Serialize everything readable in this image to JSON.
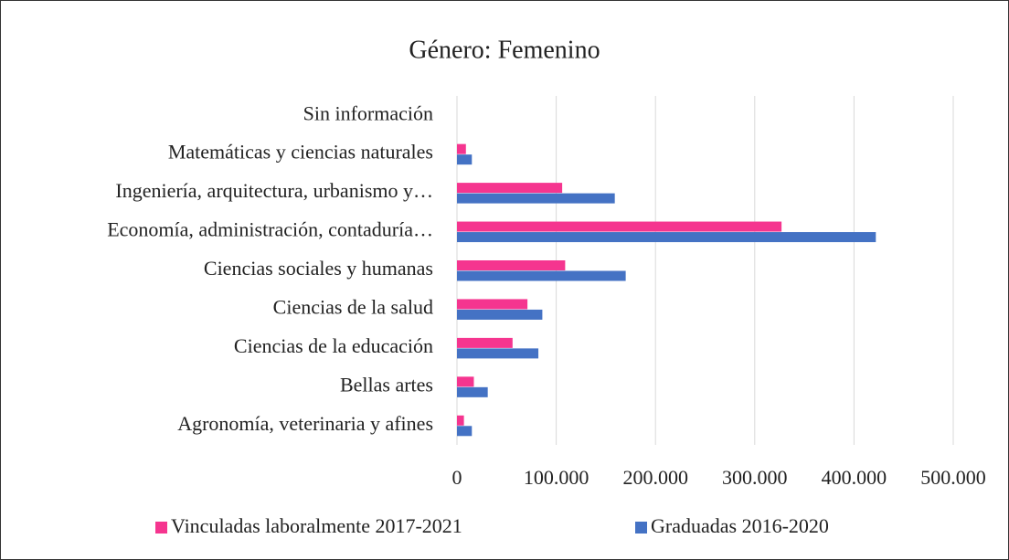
{
  "chart_data": {
    "type": "bar",
    "orientation": "horizontal",
    "title": "Género: Femenino",
    "categories": [
      "Agronomía, veterinaria y afines",
      "Bellas artes",
      "Ciencias de la educación",
      "Ciencias de la salud",
      "Ciencias sociales y humanas",
      "Economía, administración, contaduría…",
      "Ingeniería, arquitectura, urbanismo y…",
      "Matemáticas y ciencias naturales",
      "Sin información"
    ],
    "series": [
      {
        "name": "Vinculadas laboralmente 2017-2021",
        "color": "#f5358f",
        "values": [
          7000,
          17000,
          56000,
          71000,
          109000,
          327000,
          106000,
          9000,
          0
        ]
      },
      {
        "name": "Graduadas 2016-2020",
        "color": "#4472c4",
        "values": [
          15000,
          31000,
          82000,
          86000,
          170000,
          422000,
          159000,
          15000,
          0
        ]
      }
    ],
    "xlim": [
      0,
      500000
    ],
    "xticks": [
      0,
      {
        "value": 100000,
        "label": "100.000"
      },
      {
        "value": 200000,
        "label": "200.000"
      },
      {
        "value": 300000,
        "label": "300.000"
      },
      {
        "value": 400000,
        "label": "400.000"
      },
      {
        "value": 500000,
        "label": "500.000"
      }
    ],
    "grid": true,
    "legend": "bottom"
  }
}
